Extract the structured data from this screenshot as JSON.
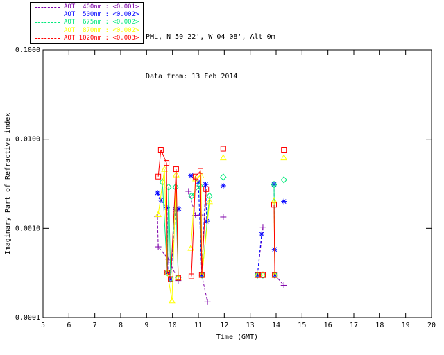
{
  "header": {
    "line1": "PML, N 50 22', W 04 08', Alt 0m",
    "line2": "Data from: 13 Feb 2014"
  },
  "legend": {
    "position": "top-left-outside-box",
    "entries": [
      {
        "label": "AOT  400nm : <0.001>",
        "color": "#7D00A8"
      },
      {
        "label": "AOT  500nm : <0.002>",
        "color": "#0000FF"
      },
      {
        "label": "AOT  675nm : <0.002>",
        "color": "#00E87A"
      },
      {
        "label": "AOT  870nm : <0.002>",
        "color": "#FFFF00"
      },
      {
        "label": "AOT 1020nm : <0.003>",
        "color": "#FF0000"
      }
    ]
  },
  "chart_data": {
    "type": "line",
    "title": "",
    "xlabel": "Time (GMT)",
    "ylabel": "Imaginary Part of Refractive index",
    "xlim": [
      5,
      20
    ],
    "ylim": [
      0.0001,
      0.1
    ],
    "yscale": "log",
    "grid": false,
    "xticks": [
      5,
      6,
      7,
      8,
      9,
      10,
      11,
      12,
      13,
      14,
      15,
      16,
      17,
      18,
      19,
      20
    ],
    "yticks": [
      {
        "value": 0.1,
        "label": "0.1000"
      },
      {
        "value": 0.01,
        "label": "0.0100"
      },
      {
        "value": 0.001,
        "label": "0.0010"
      },
      {
        "value": 0.0001,
        "label": "0.0001"
      }
    ],
    "series": [
      {
        "name": "AOT 400nm",
        "value_label": "<0.001>",
        "color": "#7D00A8",
        "marker": "plus",
        "dashed": true,
        "segments": [
          [
            [
              9.42,
              0.00135
            ],
            [
              9.45,
              0.00062
            ],
            [
              9.85,
              0.00045
            ],
            [
              10.22,
              0.00026
            ]
          ],
          [
            [
              10.62,
              0.0026
            ],
            [
              10.89,
              0.0014
            ],
            [
              11.08,
              0.00141
            ],
            [
              11.13,
              0.0003
            ],
            [
              11.35,
              0.00015
            ]
          ],
          [
            [
              11.96,
              0.00134
            ]
          ],
          [
            [
              13.28,
              0.0003
            ],
            [
              13.49,
              0.00103
            ]
          ],
          [
            [
              13.95,
              0.0003
            ],
            [
              14.3,
              0.00023
            ]
          ]
        ]
      },
      {
        "name": "AOT 500nm",
        "value_label": "<0.002>",
        "color": "#0000FF",
        "marker": "asterisk",
        "dashed": true,
        "segments": [
          [
            [
              9.42,
              0.0025
            ],
            [
              9.55,
              0.00207
            ],
            [
              9.79,
              0.0017
            ],
            [
              9.82,
              0.00032
            ],
            [
              9.93,
              0.00027
            ],
            [
              10.12,
              0.00162
            ],
            [
              10.25,
              0.00165
            ]
          ],
          [
            [
              10.71,
              0.0039
            ],
            [
              11.0,
              0.0033
            ],
            [
              11.13,
              0.0003
            ],
            [
              11.28,
              0.0031
            ],
            [
              11.32,
              0.0012
            ]
          ],
          [
            [
              11.96,
              0.003
            ]
          ],
          [
            [
              13.28,
              0.0003
            ],
            [
              13.44,
              0.00086
            ]
          ],
          [
            [
              13.92,
              0.0031
            ],
            [
              13.94,
              0.00058
            ],
            [
              13.96,
              0.0003
            ]
          ],
          [
            [
              14.3,
              0.002
            ]
          ]
        ]
      },
      {
        "name": "AOT 675nm",
        "value_label": "<0.002>",
        "color": "#00E87A",
        "marker": "diamond",
        "dashed": false,
        "segments": [
          [
            [
              9.61,
              0.0033
            ],
            [
              9.8,
              0.00032
            ],
            [
              9.85,
              0.0029
            ],
            [
              9.93,
              0.00027
            ],
            [
              10.12,
              0.0029
            ],
            [
              10.22,
              0.00028
            ]
          ],
          [
            [
              10.73,
              0.0023
            ],
            [
              11.05,
              0.003
            ],
            [
              11.14,
              0.0003
            ],
            [
              11.43,
              0.0023
            ]
          ],
          [
            [
              11.96,
              0.00375
            ]
          ],
          [
            [
              13.28,
              0.0003
            ],
            [
              13.49,
              0.0003
            ]
          ],
          [
            [
              13.92,
              0.0031
            ],
            [
              13.95,
              0.0003
            ]
          ],
          [
            [
              14.3,
              0.0035
            ]
          ]
        ]
      },
      {
        "name": "AOT 870nm",
        "value_label": "<0.002>",
        "color": "#FFFF00",
        "marker": "triangle",
        "dashed": false,
        "segments": [
          [
            [
              9.45,
              0.00143
            ],
            [
              9.69,
              0.0046
            ],
            [
              9.8,
              0.00032
            ],
            [
              9.98,
              0.000155
            ],
            [
              10.14,
              0.004
            ],
            [
              10.22,
              0.00028
            ]
          ],
          [
            [
              10.71,
              0.0006
            ],
            [
              10.89,
              0.0036
            ],
            [
              11.1,
              0.0039
            ],
            [
              11.14,
              0.0003
            ],
            [
              11.43,
              0.002
            ]
          ],
          [
            [
              11.96,
              0.0062
            ]
          ],
          [
            [
              13.28,
              0.0003
            ],
            [
              13.49,
              0.0003
            ]
          ],
          [
            [
              13.92,
              0.00204
            ],
            [
              13.95,
              0.0003
            ]
          ],
          [
            [
              14.3,
              0.0062
            ]
          ]
        ]
      },
      {
        "name": "AOT 1020nm",
        "value_label": "<0.003>",
        "color": "#FF0000",
        "marker": "square",
        "dashed": false,
        "segments": [
          [
            [
              9.45,
              0.0038
            ],
            [
              9.55,
              0.0076
            ],
            [
              9.77,
              0.0054
            ],
            [
              9.8,
              0.00032
            ],
            [
              9.93,
              0.00027
            ],
            [
              10.14,
              0.0046
            ],
            [
              10.22,
              0.00028
            ]
          ],
          [
            [
              10.73,
              0.00029
            ],
            [
              10.89,
              0.0038
            ],
            [
              11.08,
              0.0044
            ],
            [
              11.13,
              0.0003
            ],
            [
              11.3,
              0.00275
            ]
          ],
          [
            [
              11.96,
              0.0078
            ]
          ],
          [
            [
              13.28,
              0.0003
            ],
            [
              13.49,
              0.0003
            ]
          ],
          [
            [
              13.92,
              0.00184
            ],
            [
              13.95,
              0.0003
            ]
          ],
          [
            [
              14.3,
              0.0076
            ]
          ]
        ]
      }
    ]
  }
}
